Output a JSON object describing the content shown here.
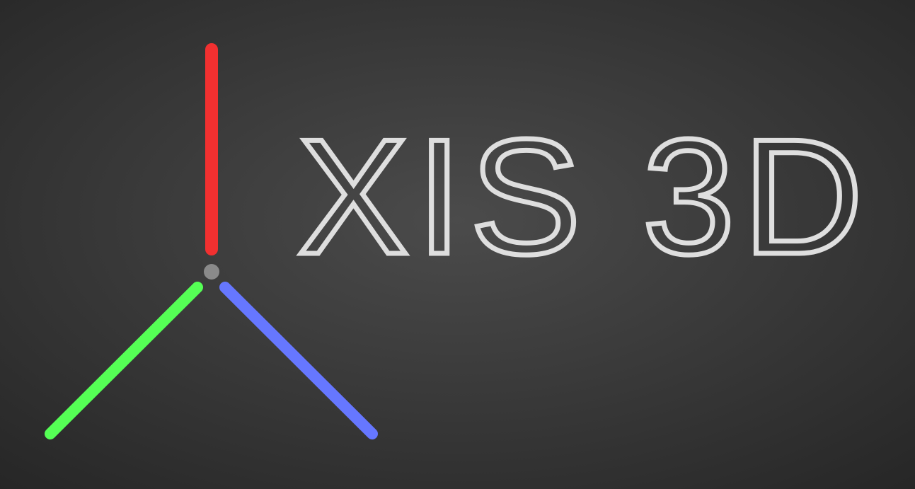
{
  "logo": {
    "text": "XIS 3D"
  }
}
